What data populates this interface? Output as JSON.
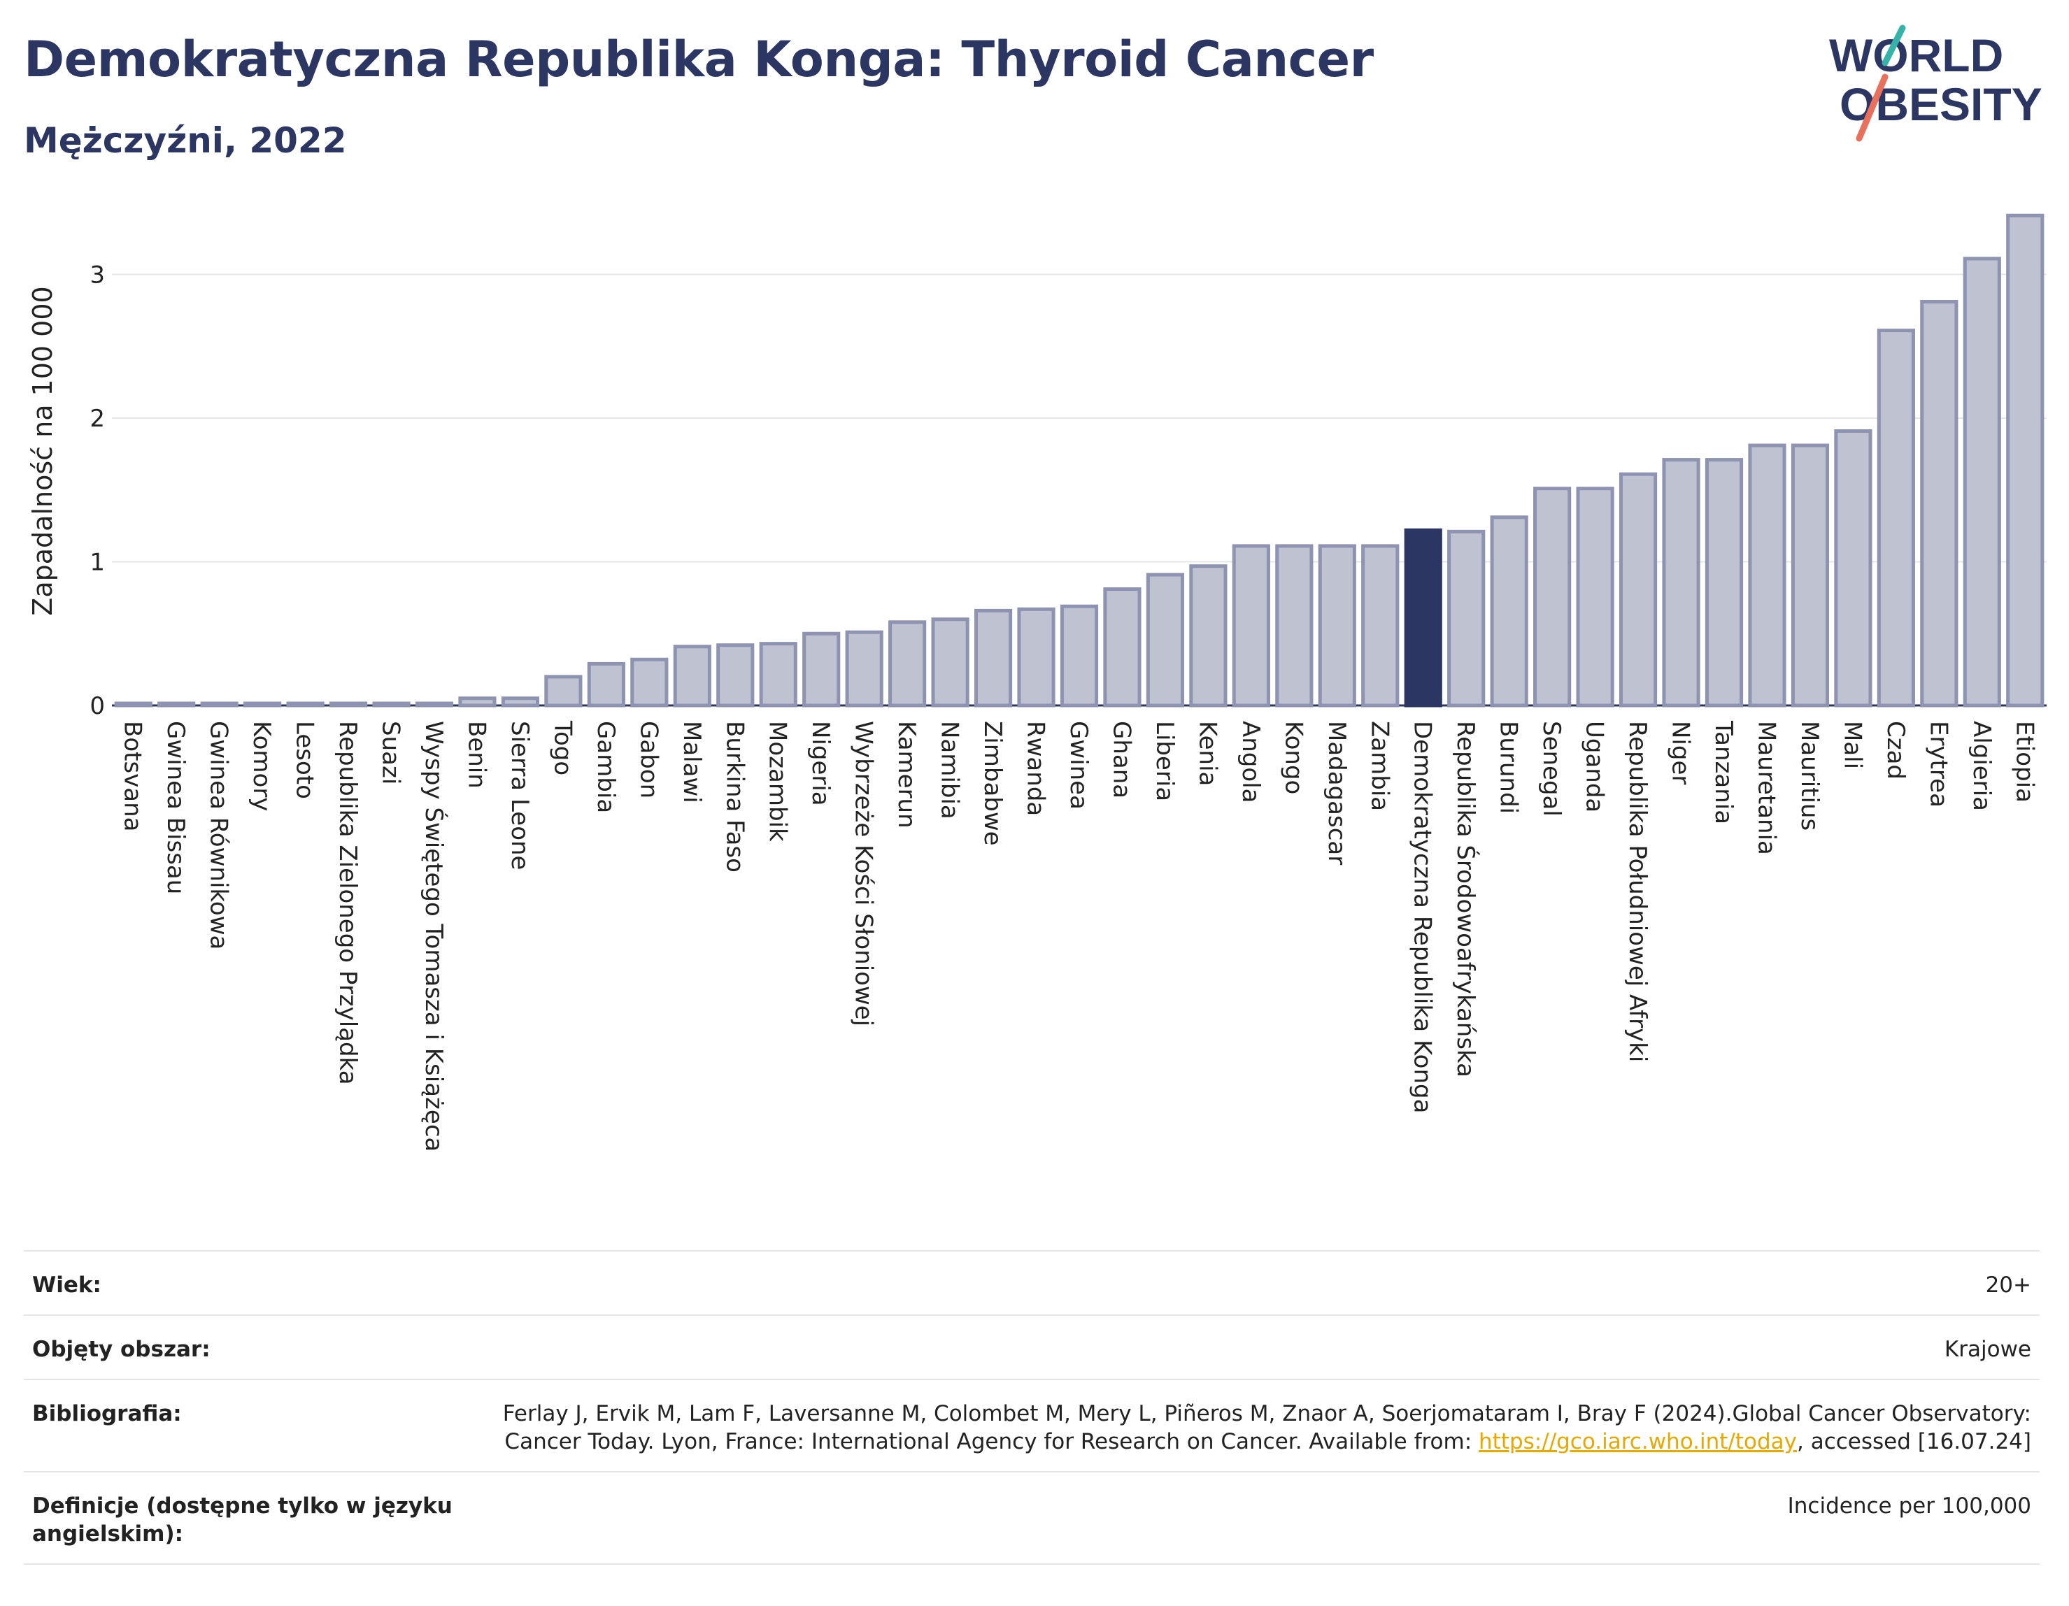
{
  "header": {
    "title": "Demokratyczna Republika Konga: Thyroid Cancer",
    "subtitle": "Mężczyźni, 2022"
  },
  "logo": {
    "line1": "WORLD",
    "line2": "OBESITY"
  },
  "colors": {
    "bar": "#bec2d1",
    "bar_stroke": "#8d93b0",
    "highlight": "#2b3663",
    "title": "#2b3663",
    "logo_teal": "#35b3a8",
    "logo_coral": "#e8705c"
  },
  "chart_data": {
    "type": "bar",
    "ylabel": "Zapadalność na 100 000",
    "ylim": [
      0,
      3.45
    ],
    "yticks": [
      0,
      1,
      2,
      3
    ],
    "grid": true,
    "highlight": "Demokratyczna Republika Konga",
    "categories": [
      "Botsvana",
      "Gwinea Bissau",
      "Gwinea Równikowa",
      "Komory",
      "Lesoto",
      "Republika Zielonego Przylądka",
      "Suazi",
      "Wyspy Świętego Tomasza i Książęca",
      "Benin",
      "Sierra Leone",
      "Togo",
      "Gambia",
      "Gabon",
      "Malawi",
      "Burkina Faso",
      "Mozambik",
      "Nigeria",
      "Wybrzeże Kości Słoniowej",
      "Kamerun",
      "Namibia",
      "Zimbabwe",
      "Rwanda",
      "Gwinea",
      "Ghana",
      "Liberia",
      "Kenia",
      "Angola",
      "Kongo",
      "Madagascar",
      "Zambia",
      "Demokratyczna Republika Konga",
      "Republika Środowoafrykańska",
      "Burundi",
      "Senegal",
      "Uganda",
      "Republika Południowej Afryki",
      "Niger",
      "Tanzania",
      "Mauretania",
      "Mauritius",
      "Mali",
      "Czad",
      "Erytrea",
      "Algieria",
      "Etiopia"
    ],
    "values": [
      0.01,
      0.01,
      0.01,
      0.01,
      0.01,
      0.01,
      0.01,
      0.01,
      0.05,
      0.05,
      0.2,
      0.29,
      0.32,
      0.41,
      0.42,
      0.43,
      0.5,
      0.51,
      0.58,
      0.6,
      0.66,
      0.67,
      0.69,
      0.81,
      0.91,
      0.97,
      1.11,
      1.11,
      1.11,
      1.11,
      1.22,
      1.21,
      1.31,
      1.51,
      1.51,
      1.61,
      1.71,
      1.71,
      1.81,
      1.81,
      1.91,
      2.61,
      2.81,
      3.11,
      3.41
    ]
  },
  "meta": [
    {
      "key": "Wiek:",
      "value": "20+"
    },
    {
      "key": "Objęty obszar:",
      "value": "Krajowe"
    },
    {
      "key": "Bibliografia:",
      "value": "Ferlay J, Ervik M, Lam F, Laversanne M, Colombet M, Mery L, Piñeros M, Znaor A, Soerjomataram I, Bray F (2024).Global Cancer Observatory: Cancer Today. Lyon, France: International Agency for Research on Cancer. Available from: ",
      "link": "https://gco.iarc.who.int/today",
      "suffix": ", accessed [16.07.24]"
    },
    {
      "key": "Definicje (dostępne tylko w języku angielskim):",
      "value": "Incidence per 100,000"
    }
  ]
}
